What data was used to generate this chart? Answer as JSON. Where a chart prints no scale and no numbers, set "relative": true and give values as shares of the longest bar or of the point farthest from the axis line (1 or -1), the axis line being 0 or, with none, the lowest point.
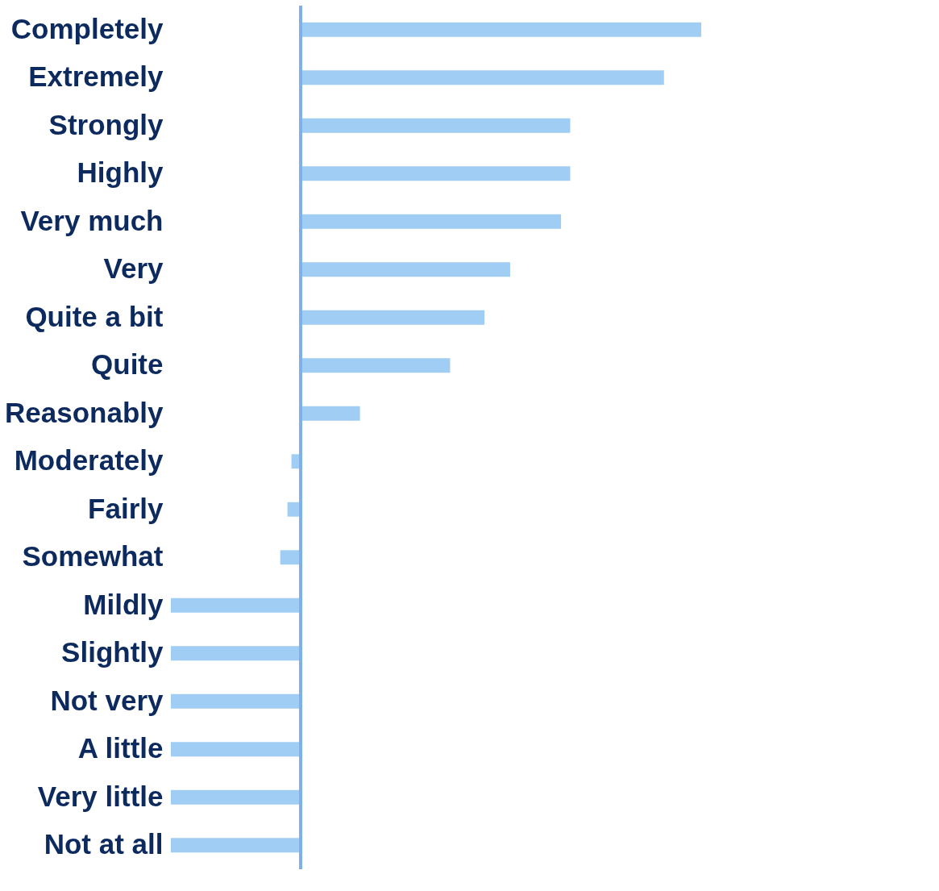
{
  "chart_data": {
    "type": "bar",
    "orientation": "horizontal",
    "relative": true,
    "categories": [
      "Completely",
      "Extremely",
      "Strongly",
      "Highly",
      "Very much",
      "Very",
      "Quite a bit",
      "Quite",
      "Reasonably",
      "Moderately",
      "Fairly",
      "Somewhat",
      "Mildly",
      "Slightly",
      "Not very",
      "A little",
      "Very little",
      "Not at all"
    ],
    "values": [
      1.0,
      0.907,
      0.673,
      0.673,
      0.65,
      0.523,
      0.459,
      0.373,
      0.148,
      -0.023,
      -0.033,
      -0.051,
      -0.324,
      -0.324,
      -0.324,
      -0.324,
      -0.324,
      -0.324
    ],
    "color": "#9fcdf4",
    "ref_lines": [
      {
        "axis": "x",
        "value": 0,
        "color": "#7fb0ea"
      }
    ]
  }
}
